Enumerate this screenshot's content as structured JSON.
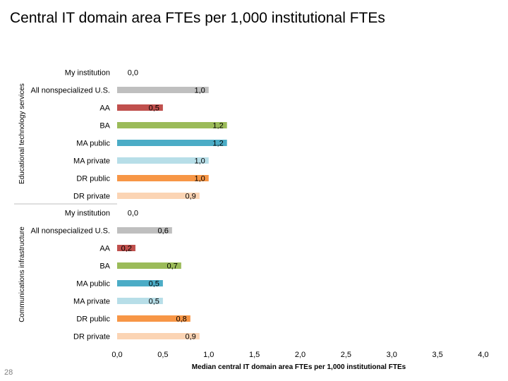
{
  "slide": {
    "title": "Central IT domain area FTEs per 1,000 institutional FTEs",
    "page_number": "28"
  },
  "chart_data": {
    "type": "bar",
    "orientation": "horizontal",
    "xlabel": "Median central IT domain area FTEs per 1,000 institutional FTEs",
    "xlim": [
      0,
      4
    ],
    "xticks": [
      0,
      0.5,
      1,
      1.5,
      2,
      2.5,
      3,
      3.5,
      4
    ],
    "xtick_labels": [
      "0,0",
      "0,5",
      "1,0",
      "1,5",
      "2,0",
      "2,5",
      "3,0",
      "3,5",
      "4,0"
    ],
    "grid": false,
    "colors": {
      "My institution": "#d9d9d9",
      "All nonspecialized U.S.": "#bfbfbf",
      "AA": "#c0504d",
      "BA": "#9bbb59",
      "MA public": "#4bacc6",
      "MA private": "#b7dee8",
      "DR public": "#f79646",
      "DR private": "#fbd4b4"
    },
    "groups": [
      {
        "name": "Educational technology services",
        "categories": [
          "My institution",
          "All nonspecialized U.S.",
          "AA",
          "BA",
          "MA public",
          "MA private",
          "DR public",
          "DR private"
        ],
        "values": [
          0.0,
          1.0,
          0.5,
          1.2,
          1.2,
          1.0,
          1.0,
          0.9
        ],
        "value_labels": [
          "0,0",
          "1,0",
          "0,5",
          "1,2",
          "1,2",
          "1,0",
          "1,0",
          "0,9"
        ]
      },
      {
        "name": "Communications infrastructure",
        "categories": [
          "My institution",
          "All nonspecialized U.S.",
          "AA",
          "BA",
          "MA public",
          "MA private",
          "DR public",
          "DR private"
        ],
        "values": [
          0.0,
          0.6,
          0.2,
          0.7,
          0.5,
          0.5,
          0.8,
          0.9
        ],
        "value_labels": [
          "0,0",
          "0,6",
          "0,2",
          "0,7",
          "0,5",
          "0,5",
          "0,8",
          "0,9"
        ]
      }
    ]
  }
}
